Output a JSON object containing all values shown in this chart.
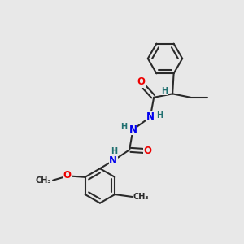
{
  "bg_color": "#e8e8e8",
  "atom_colors": {
    "C": "#2a2a2a",
    "N": "#0000ee",
    "O": "#ee0000",
    "H": "#207070"
  },
  "bond_color": "#2a2a2a",
  "bond_width": 1.5,
  "font_size_atoms": 8.5,
  "font_size_H": 7.0,
  "font_size_label": 7.0
}
